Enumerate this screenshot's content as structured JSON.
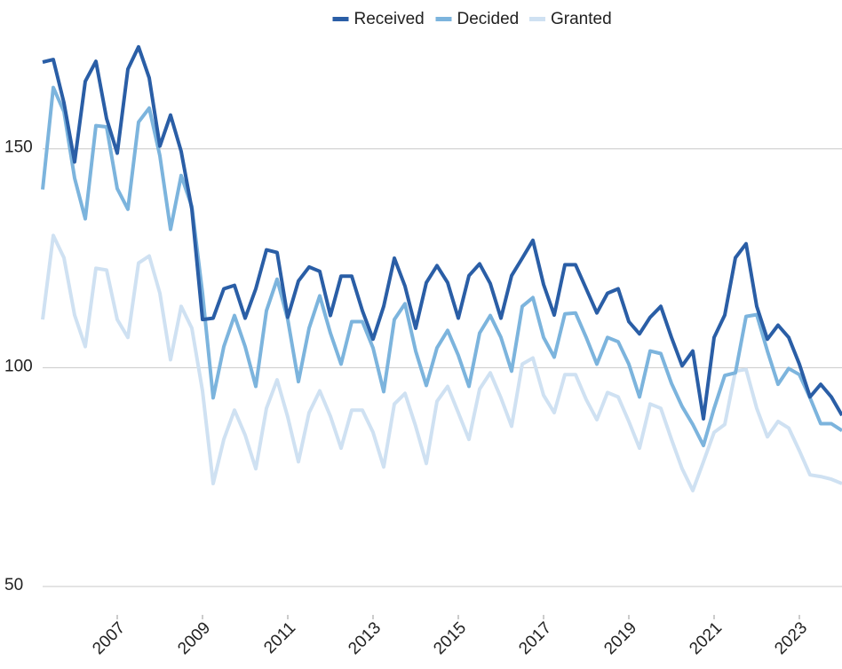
{
  "chart_data": {
    "type": "line",
    "x": [
      2005.25,
      2005.5,
      2005.75,
      2006,
      2006.25,
      2006.5,
      2006.75,
      2007,
      2007.25,
      2007.5,
      2007.75,
      2008,
      2008.25,
      2008.5,
      2008.75,
      2009,
      2009.25,
      2009.5,
      2009.75,
      2010,
      2010.25,
      2010.5,
      2010.75,
      2011,
      2011.25,
      2011.5,
      2011.75,
      2012,
      2012.25,
      2012.5,
      2012.75,
      2013,
      2013.25,
      2013.5,
      2013.75,
      2014,
      2014.25,
      2014.5,
      2014.75,
      2015,
      2015.25,
      2015.5,
      2015.75,
      2016,
      2016.25,
      2016.5,
      2016.75,
      2017,
      2017.25,
      2017.5,
      2017.75,
      2018,
      2018.25,
      2018.5,
      2018.75,
      2019,
      2019.25,
      2019.5,
      2019.75,
      2020,
      2020.25,
      2020.5,
      2020.75,
      2021,
      2021.25,
      2021.5,
      2021.75,
      2022,
      2022.25,
      2022.5,
      2022.75,
      2023,
      2023.25,
      2023.5,
      2023.75,
      2024
    ],
    "series": [
      {
        "name": "Received",
        "color": "#2a5ea6",
        "values": [
          169.8,
          170.4,
          160.5,
          147,
          165.4,
          170,
          156.9,
          149,
          168.2,
          173.3,
          166.2,
          150.6,
          157.7,
          149.4,
          136.2,
          111,
          111.3,
          118,
          118.8,
          111.3,
          118,
          126.9,
          126.3,
          111.5,
          119.8,
          123,
          122,
          111.9,
          120.9,
          120.9,
          113,
          106.5,
          114,
          125,
          118.6,
          109,
          119.4,
          123.3,
          119.4,
          111.3,
          121,
          123.7,
          119.2,
          111.3,
          121,
          125,
          129.1,
          119,
          112,
          123.5,
          123.5,
          118,
          112.5,
          117,
          118,
          110.5,
          107.7,
          111.5,
          114,
          106.9,
          100.4,
          103.8,
          88.3,
          106.9,
          112,
          125.1,
          128.3,
          114,
          106.5,
          109.7,
          106.9,
          100.8,
          93.3,
          96.2,
          93.3,
          89.1
        ]
      },
      {
        "name": "Decided",
        "color": "#7cb4dd",
        "values": [
          140.7,
          164,
          158.5,
          143.3,
          134,
          155.3,
          155,
          140.9,
          136.2,
          156.1,
          159.3,
          148.4,
          131.6,
          143.9,
          136.8,
          117,
          93.1,
          104.8,
          111.9,
          104.8,
          95.7,
          113,
          120.2,
          111,
          96.8,
          109,
          116.4,
          107.9,
          100.8,
          110.5,
          110.5,
          104.5,
          94.5,
          111,
          114.6,
          103.8,
          95.9,
          104.5,
          108.5,
          102.8,
          95.7,
          107.9,
          111.9,
          106.9,
          99.2,
          114,
          116,
          106.9,
          102.4,
          112.3,
          112.5,
          106.9,
          100.8,
          106.9,
          105.9,
          100.8,
          93.3,
          103.8,
          103.2,
          96.4,
          91.1,
          87,
          82.2,
          90.7,
          98.2,
          98.8,
          111.7,
          112.1,
          103.8,
          96.2,
          99.8,
          98.4,
          93.1,
          87.2,
          87.2,
          85.6
        ]
      },
      {
        "name": "Granted",
        "color": "#cfe1f2",
        "values": [
          111,
          130.2,
          125.1,
          112,
          104.8,
          122.7,
          122.3,
          111,
          106.9,
          123.9,
          125.5,
          117,
          101.8,
          114,
          109,
          94.7,
          73.5,
          83.6,
          90.3,
          84.6,
          76.9,
          90.7,
          97.2,
          88.7,
          78.5,
          89.7,
          94.7,
          88.9,
          81.6,
          90.3,
          90.3,
          85.2,
          77.3,
          91.7,
          94.1,
          86.6,
          78.1,
          92.3,
          95.7,
          89.7,
          83.6,
          95.1,
          98.8,
          93.1,
          86.6,
          100.8,
          102.2,
          93.7,
          89.7,
          98.4,
          98.4,
          92.7,
          88.1,
          94.3,
          93.3,
          87.7,
          81.6,
          91.7,
          90.7,
          83.6,
          76.9,
          71.9,
          78.5,
          85.2,
          87,
          99.2,
          99.6,
          90.7,
          84.2,
          87.7,
          86.2,
          81,
          75.5,
          75.1,
          74.5,
          73.5
        ]
      }
    ],
    "xlim": [
      2005.25,
      2024
    ],
    "xticks": [
      2007,
      2009,
      2011,
      2013,
      2015,
      2017,
      2019,
      2021,
      2023
    ],
    "ylim": [
      43.5,
      184
    ],
    "yticks": [
      50,
      100,
      150
    ],
    "grid": true,
    "legend": "top"
  }
}
